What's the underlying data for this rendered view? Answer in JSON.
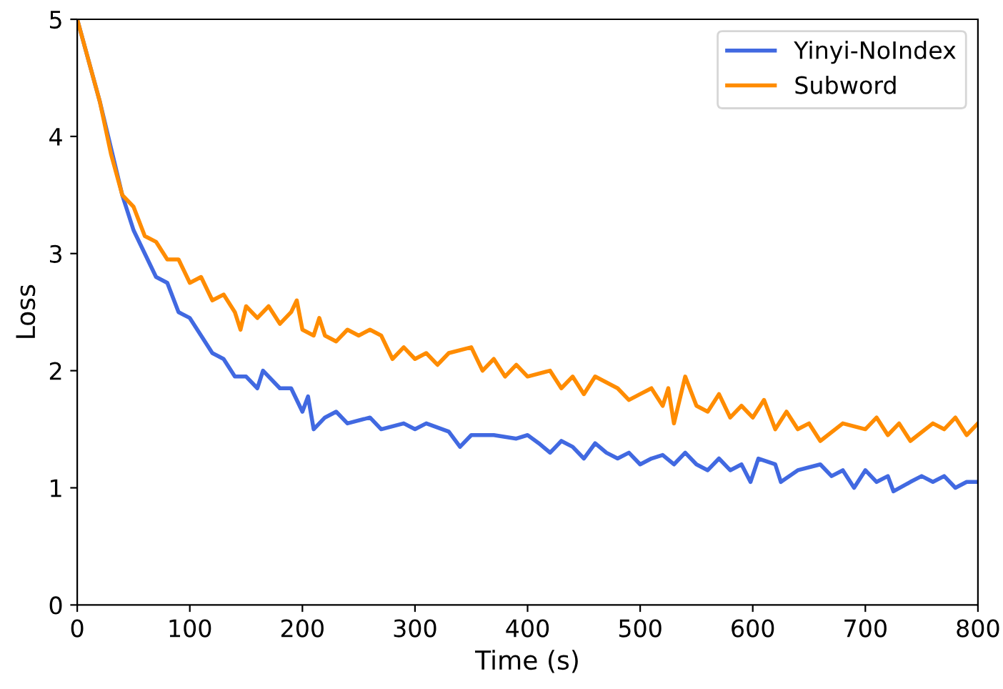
{
  "chart_data": {
    "type": "line",
    "xlabel": "Time (s)",
    "ylabel": "Loss",
    "xlim": [
      0,
      800
    ],
    "ylim": [
      0,
      5
    ],
    "xticks": [
      0,
      100,
      200,
      300,
      400,
      500,
      600,
      700,
      800
    ],
    "yticks": [
      0,
      1,
      2,
      3,
      4,
      5
    ],
    "grid": false,
    "legend": "top right",
    "marker": "none",
    "line_style": "solid",
    "series": [
      {
        "name": "Yinyi-NoIndex",
        "color": "#4169e1",
        "x": [
          0,
          20,
          30,
          40,
          50,
          60,
          70,
          80,
          90,
          100,
          110,
          120,
          130,
          140,
          150,
          160,
          165,
          180,
          190,
          200,
          205,
          210,
          220,
          230,
          240,
          260,
          270,
          290,
          300,
          310,
          330,
          340,
          350,
          370,
          390,
          400,
          410,
          420,
          430,
          440,
          450,
          460,
          470,
          480,
          490,
          500,
          510,
          520,
          530,
          540,
          550,
          560,
          570,
          580,
          590,
          598,
          605,
          620,
          625,
          640,
          660,
          670,
          680,
          690,
          700,
          710,
          720,
          725,
          740,
          750,
          760,
          770,
          780,
          790,
          800
        ],
        "values": [
          5,
          4.3,
          3.9,
          3.5,
          3.2,
          3.0,
          2.8,
          2.75,
          2.5,
          2.45,
          2.3,
          2.15,
          2.1,
          1.95,
          1.95,
          1.85,
          2.0,
          1.85,
          1.85,
          1.65,
          1.78,
          1.5,
          1.6,
          1.65,
          1.55,
          1.6,
          1.5,
          1.55,
          1.5,
          1.55,
          1.48,
          1.35,
          1.45,
          1.45,
          1.42,
          1.45,
          1.38,
          1.3,
          1.4,
          1.35,
          1.25,
          1.38,
          1.3,
          1.25,
          1.3,
          1.2,
          1.25,
          1.28,
          1.2,
          1.3,
          1.2,
          1.15,
          1.25,
          1.15,
          1.2,
          1.05,
          1.25,
          1.2,
          1.05,
          1.15,
          1.2,
          1.1,
          1.15,
          1.0,
          1.15,
          1.05,
          1.1,
          0.97,
          1.05,
          1.1,
          1.05,
          1.1,
          1.0,
          1.05,
          1.05
        ]
      },
      {
        "name": "Subword",
        "color": "#ff8c00",
        "x": [
          0,
          20,
          30,
          40,
          50,
          60,
          70,
          80,
          90,
          100,
          110,
          120,
          130,
          140,
          145,
          150,
          160,
          170,
          180,
          190,
          195,
          200,
          210,
          215,
          220,
          230,
          240,
          250,
          260,
          270,
          280,
          290,
          300,
          310,
          320,
          330,
          350,
          360,
          370,
          380,
          390,
          400,
          420,
          430,
          440,
          450,
          460,
          480,
          490,
          500,
          510,
          520,
          525,
          530,
          540,
          550,
          560,
          570,
          580,
          590,
          600,
          610,
          620,
          630,
          640,
          650,
          660,
          680,
          700,
          710,
          720,
          730,
          740,
          760,
          770,
          780,
          790,
          800
        ],
        "values": [
          5,
          4.3,
          3.85,
          3.5,
          3.4,
          3.15,
          3.1,
          2.95,
          2.95,
          2.75,
          2.8,
          2.6,
          2.65,
          2.5,
          2.35,
          2.55,
          2.45,
          2.55,
          2.4,
          2.5,
          2.6,
          2.35,
          2.3,
          2.45,
          2.3,
          2.25,
          2.35,
          2.3,
          2.35,
          2.3,
          2.1,
          2.2,
          2.1,
          2.15,
          2.05,
          2.15,
          2.2,
          2.0,
          2.1,
          1.95,
          2.05,
          1.95,
          2.0,
          1.85,
          1.95,
          1.8,
          1.95,
          1.85,
          1.75,
          1.8,
          1.85,
          1.7,
          1.85,
          1.55,
          1.95,
          1.7,
          1.65,
          1.8,
          1.6,
          1.7,
          1.6,
          1.75,
          1.5,
          1.65,
          1.5,
          1.55,
          1.4,
          1.55,
          1.5,
          1.6,
          1.45,
          1.55,
          1.4,
          1.55,
          1.5,
          1.6,
          1.45,
          1.55
        ]
      }
    ]
  }
}
